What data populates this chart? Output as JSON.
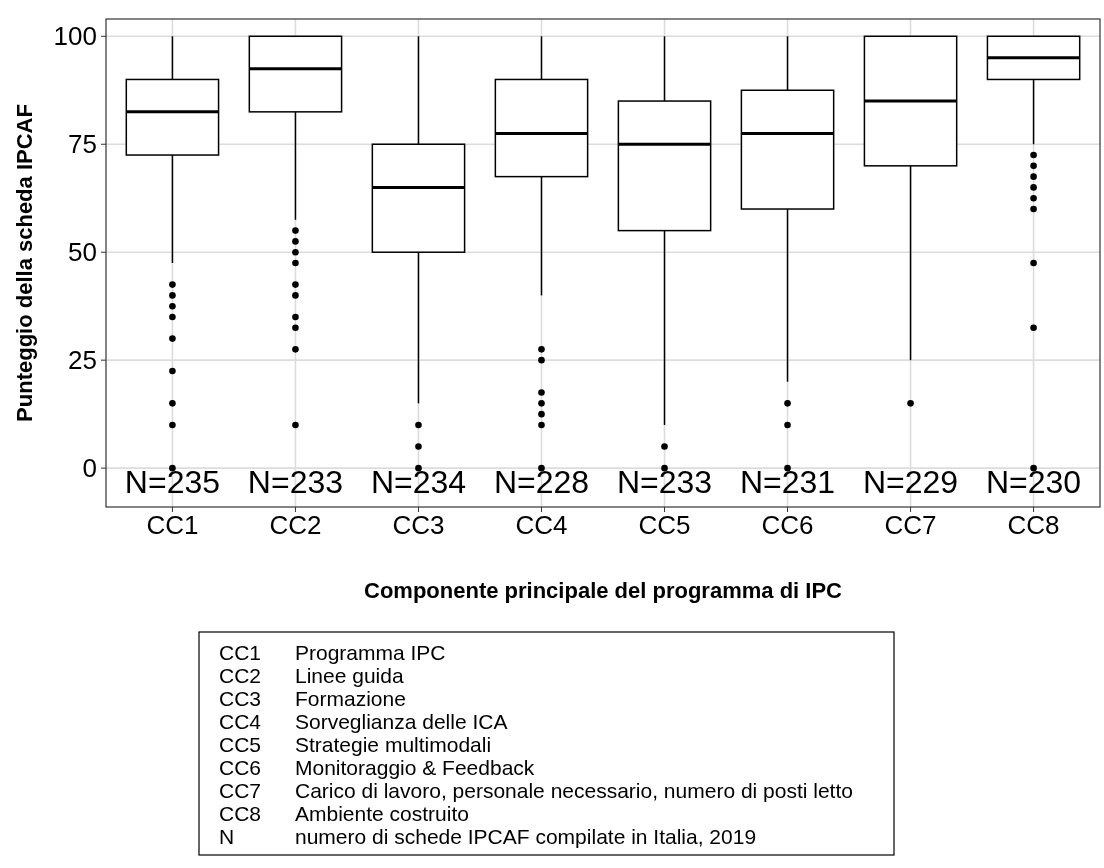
{
  "chart_data": {
    "type": "box",
    "xlabel": "Componente principale del programma di IPC",
    "ylabel": "Punteggio della scheda IPCAF",
    "categories": [
      "CC1",
      "CC2",
      "CC3",
      "CC4",
      "CC5",
      "CC6",
      "CC7",
      "CC8"
    ],
    "boxes": [
      {
        "low": 47.5,
        "q1": 72.5,
        "median": 82.5,
        "q3": 90,
        "high": 100,
        "outliers": [
          42.5,
          40,
          37.5,
          35,
          30,
          22.5,
          15,
          10,
          0
        ]
      },
      {
        "low": 57.5,
        "q1": 82.5,
        "median": 92.5,
        "q3": 100,
        "high": 100,
        "outliers": [
          55,
          52.5,
          50,
          47.5,
          42.5,
          40,
          35,
          32.5,
          27.5,
          10
        ]
      },
      {
        "low": 15,
        "q1": 50,
        "median": 65,
        "q3": 75,
        "high": 100,
        "outliers": [
          10,
          5,
          0
        ]
      },
      {
        "low": 40,
        "q1": 67.5,
        "median": 77.5,
        "q3": 90,
        "high": 100,
        "outliers": [
          27.5,
          25,
          17.5,
          15,
          12.5,
          10,
          0
        ]
      },
      {
        "low": 10,
        "q1": 55,
        "median": 75,
        "q3": 85,
        "high": 100,
        "outliers": [
          5,
          0
        ]
      },
      {
        "low": 20,
        "q1": 60,
        "median": 77.5,
        "q3": 87.5,
        "high": 100,
        "outliers": [
          15,
          10,
          0
        ]
      },
      {
        "low": 25,
        "q1": 70,
        "median": 85,
        "q3": 100,
        "high": 100,
        "outliers": [
          15
        ]
      },
      {
        "low": 75,
        "q1": 90,
        "median": 95,
        "q3": 100,
        "high": 100,
        "outliers": [
          72.5,
          70,
          67.5,
          65,
          62.5,
          60,
          47.5,
          32.5,
          0
        ]
      }
    ],
    "ylim": [
      -9,
      104
    ],
    "yticks": [
      0,
      25,
      50,
      75,
      100
    ],
    "grid": true,
    "annotations": [
      "N=235",
      "N=233",
      "N=234",
      "N=228",
      "N=233",
      "N=231",
      "N=229",
      "N=230",
      "CC1 Programma IPC",
      "CC2 Linee guida",
      "CC3 Formazione",
      "CC4 Sorveglianza delle ICA",
      "CC5 Strategie multimodali",
      "CC6 Monitoraggio & Feedback",
      "CC7 Carico di lavoro, personale necessario, numero di posti letto",
      "CC8 Ambiente costruito",
      "N numero di schede IPCAF compilate in Italia, 2019"
    ]
  }
}
